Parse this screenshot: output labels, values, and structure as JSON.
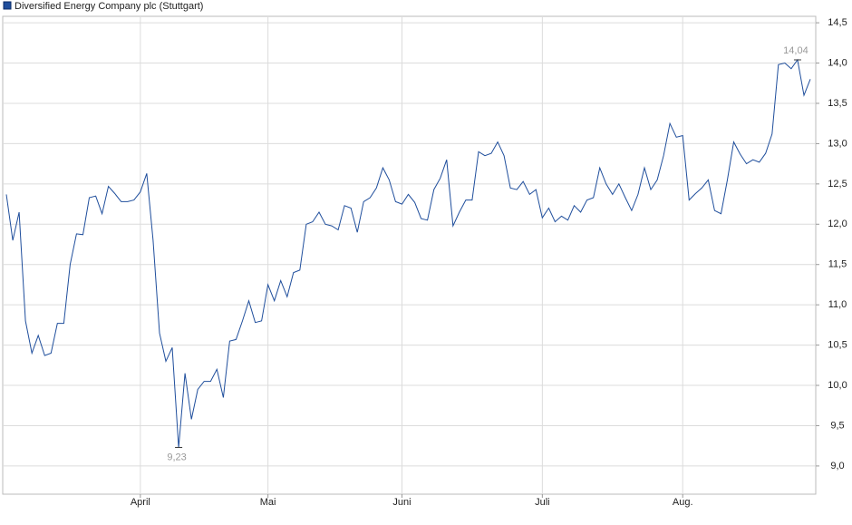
{
  "chart_data": {
    "type": "line",
    "series": [
      {
        "name": "Diversified Energy Company plc (Stuttgart)",
        "color": "#1f4e9c",
        "values": [
          12.37,
          11.8,
          12.15,
          10.8,
          10.4,
          10.62,
          10.37,
          10.4,
          10.77,
          10.77,
          11.5,
          11.88,
          11.87,
          12.33,
          12.35,
          12.13,
          12.47,
          12.38,
          12.28,
          12.28,
          12.3,
          12.4,
          12.63,
          11.8,
          10.65,
          10.3,
          10.47,
          9.23,
          10.15,
          9.58,
          9.95,
          10.05,
          10.05,
          10.2,
          9.85,
          10.55,
          10.57,
          10.8,
          11.05,
          10.78,
          10.8,
          11.25,
          11.05,
          11.3,
          11.1,
          11.4,
          11.43,
          12.0,
          12.03,
          12.15,
          12.0,
          11.98,
          11.93,
          12.23,
          12.2,
          11.9,
          12.28,
          12.33,
          12.45,
          12.7,
          12.55,
          12.28,
          12.25,
          12.37,
          12.27,
          12.07,
          12.05,
          12.43,
          12.57,
          12.8,
          11.98,
          12.15,
          12.3,
          12.3,
          12.9,
          12.85,
          12.88,
          13.02,
          12.85,
          12.45,
          12.43,
          12.53,
          12.37,
          12.43,
          12.08,
          12.2,
          12.03,
          12.1,
          12.05,
          12.23,
          12.15,
          12.3,
          12.33,
          12.7,
          12.5,
          12.37,
          12.5,
          12.33,
          12.17,
          12.37,
          12.7,
          12.43,
          12.55,
          12.85,
          13.25,
          13.08,
          13.1,
          12.3,
          12.38,
          12.45,
          12.55,
          12.17,
          12.13,
          12.55,
          13.02,
          12.87,
          12.75,
          12.8,
          12.77,
          12.88,
          13.12,
          13.98,
          14.0,
          13.93,
          14.04,
          13.6,
          13.8
        ],
        "value_labels": [
          null,
          null,
          null,
          null,
          null,
          null,
          null,
          null,
          null,
          null,
          null,
          null,
          null,
          null,
          null,
          null,
          null,
          null,
          null,
          null,
          null,
          null,
          null,
          null,
          null,
          null,
          null,
          "9,23",
          null,
          null,
          null,
          null,
          null,
          null,
          null,
          null,
          null,
          null,
          null,
          null,
          null,
          null,
          null,
          null,
          null,
          null,
          null,
          null,
          null,
          null,
          null,
          null,
          null,
          null,
          null,
          null,
          null,
          null,
          null,
          null,
          null,
          null,
          null,
          null,
          null,
          null,
          null,
          null,
          null,
          null,
          null,
          null,
          null,
          null,
          null,
          null,
          null,
          null,
          null,
          null,
          null,
          null,
          null,
          null,
          null,
          null,
          null,
          null,
          null,
          null,
          null,
          null,
          null,
          null,
          null,
          null,
          null,
          null,
          null,
          null,
          null,
          null,
          null,
          null,
          null,
          null,
          null,
          null,
          null,
          null,
          null,
          null,
          null,
          null,
          null,
          null,
          null,
          null,
          null,
          null,
          null,
          null,
          null,
          null,
          "14,04",
          null,
          null
        ]
      }
    ],
    "xlim": [
      -0.57,
      126.85
    ],
    "xticks": [
      {
        "value": 21,
        "label": "April"
      },
      {
        "value": 41,
        "label": "Mai"
      },
      {
        "value": 62,
        "label": "Juni"
      },
      {
        "value": 84,
        "label": "Juli"
      },
      {
        "value": 106,
        "label": "Aug."
      }
    ],
    "ylim": [
      8.65,
      14.58
    ],
    "yticks": [
      {
        "value": 9.0,
        "label": "9,0"
      },
      {
        "value": 9.5,
        "label": "9,5"
      },
      {
        "value": 10.0,
        "label": "10,0"
      },
      {
        "value": 10.5,
        "label": "10,5"
      },
      {
        "value": 11.0,
        "label": "11,0"
      },
      {
        "value": 11.5,
        "label": "11,5"
      },
      {
        "value": 12.0,
        "label": "12,0"
      },
      {
        "value": 12.5,
        "label": "12,5"
      },
      {
        "value": 13.0,
        "label": "13,0"
      },
      {
        "value": 13.5,
        "label": "13,5"
      },
      {
        "value": 14.0,
        "label": "14,0"
      },
      {
        "value": 14.5,
        "label": "14,5"
      }
    ],
    "grid": true,
    "legend": "top-left"
  }
}
